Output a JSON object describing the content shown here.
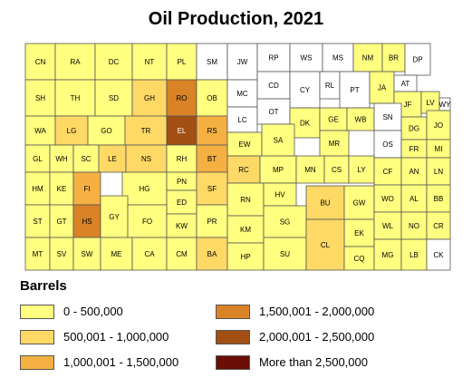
{
  "title": "Oil Production, 2021",
  "legend": {
    "title": "Barrels",
    "items": [
      {
        "label": "0 - 500,000",
        "color": "#ffff80"
      },
      {
        "label": "500,001 - 1,000,000",
        "color": "#ffd966"
      },
      {
        "label": "1,000,001 - 1,500,000",
        "color": "#f4b142"
      },
      {
        "label": "1,500,001 - 2,000,000",
        "color": "#d98326"
      },
      {
        "label": "2,000,001 - 2,500,000",
        "color": "#a24f13"
      },
      {
        "label": "More than 2,500,000",
        "color": "#6b0e05"
      }
    ]
  },
  "counties": [
    {
      "abbr": "CN",
      "class": 0
    },
    {
      "abbr": "RA",
      "class": 0
    },
    {
      "abbr": "DC",
      "class": 0
    },
    {
      "abbr": "NT",
      "class": 0
    },
    {
      "abbr": "PL",
      "class": 0
    },
    {
      "abbr": "SM",
      "class": -1
    },
    {
      "abbr": "JW",
      "class": -1
    },
    {
      "abbr": "RP",
      "class": -1
    },
    {
      "abbr": "WS",
      "class": -1
    },
    {
      "abbr": "MS",
      "class": -1
    },
    {
      "abbr": "NM",
      "class": 0
    },
    {
      "abbr": "BR",
      "class": 0
    },
    {
      "abbr": "DP",
      "class": -1
    },
    {
      "abbr": "SH",
      "class": 0
    },
    {
      "abbr": "TH",
      "class": 0
    },
    {
      "abbr": "SD",
      "class": 0
    },
    {
      "abbr": "GH",
      "class": 1
    },
    {
      "abbr": "RO",
      "class": 3
    },
    {
      "abbr": "OB",
      "class": 0
    },
    {
      "abbr": "MC",
      "class": -1
    },
    {
      "abbr": "CD",
      "class": -1
    },
    {
      "abbr": "CY",
      "class": -1
    },
    {
      "abbr": "RL",
      "class": -1
    },
    {
      "abbr": "PT",
      "class": -1
    },
    {
      "abbr": "JA",
      "class": 0
    },
    {
      "abbr": "AT",
      "class": -1
    },
    {
      "abbr": "JF",
      "class": 0
    },
    {
      "abbr": "LV",
      "class": 0
    },
    {
      "abbr": "WY",
      "class": -1
    },
    {
      "abbr": "WA",
      "class": 0
    },
    {
      "abbr": "LG",
      "class": 1
    },
    {
      "abbr": "GO",
      "class": 0
    },
    {
      "abbr": "TR",
      "class": 1
    },
    {
      "abbr": "EL",
      "class": 4
    },
    {
      "abbr": "RS",
      "class": 2
    },
    {
      "abbr": "LC",
      "class": -1
    },
    {
      "abbr": "OT",
      "class": -1
    },
    {
      "abbr": "DK",
      "class": 0
    },
    {
      "abbr": "GE",
      "class": 0
    },
    {
      "abbr": "WB",
      "class": 0
    },
    {
      "abbr": "SN",
      "class": -1
    },
    {
      "abbr": "DG",
      "class": 0
    },
    {
      "abbr": "JO",
      "class": 0
    },
    {
      "abbr": "EW",
      "class": 0
    },
    {
      "abbr": "SA",
      "class": 0
    },
    {
      "abbr": "MR",
      "class": 0
    },
    {
      "abbr": "OS",
      "class": -1
    },
    {
      "abbr": "FR",
      "class": 0
    },
    {
      "abbr": "MI",
      "class": 0
    },
    {
      "abbr": "GL",
      "class": 0
    },
    {
      "abbr": "WH",
      "class": 0
    },
    {
      "abbr": "SC",
      "class": 0
    },
    {
      "abbr": "LE",
      "class": 1
    },
    {
      "abbr": "NS",
      "class": 1
    },
    {
      "abbr": "RH",
      "class": 0
    },
    {
      "abbr": "BT",
      "class": 2
    },
    {
      "abbr": "RC",
      "class": 1
    },
    {
      "abbr": "MP",
      "class": 0
    },
    {
      "abbr": "MN",
      "class": 0
    },
    {
      "abbr": "CS",
      "class": 0
    },
    {
      "abbr": "LY",
      "class": 0
    },
    {
      "abbr": "CF",
      "class": 0
    },
    {
      "abbr": "AN",
      "class": 0
    },
    {
      "abbr": "LN",
      "class": 0
    },
    {
      "abbr": "HM",
      "class": 0
    },
    {
      "abbr": "KE",
      "class": 0
    },
    {
      "abbr": "FI",
      "class": 2
    },
    {
      "abbr": "HG",
      "class": 0
    },
    {
      "abbr": "PN",
      "class": 0
    },
    {
      "abbr": "SF",
      "class": 1
    },
    {
      "abbr": "RN",
      "class": 0
    },
    {
      "abbr": "HV",
      "class": 0
    },
    {
      "abbr": "BU",
      "class": 1
    },
    {
      "abbr": "GW",
      "class": 0
    },
    {
      "abbr": "WO",
      "class": 0
    },
    {
      "abbr": "AL",
      "class": 0
    },
    {
      "abbr": "BB",
      "class": 0
    },
    {
      "abbr": "ED",
      "class": 0
    },
    {
      "abbr": "ST",
      "class": 0
    },
    {
      "abbr": "GT",
      "class": 0
    },
    {
      "abbr": "HS",
      "class": 3
    },
    {
      "abbr": "GY",
      "class": 0
    },
    {
      "abbr": "FO",
      "class": 0
    },
    {
      "abbr": "KW",
      "class": 0
    },
    {
      "abbr": "PR",
      "class": 0
    },
    {
      "abbr": "KM",
      "class": 0
    },
    {
      "abbr": "SG",
      "class": 0
    },
    {
      "abbr": "EK",
      "class": 0
    },
    {
      "abbr": "WL",
      "class": 0
    },
    {
      "abbr": "NO",
      "class": 0
    },
    {
      "abbr": "CR",
      "class": 0
    },
    {
      "abbr": "MT",
      "class": 0
    },
    {
      "abbr": "SV",
      "class": 0
    },
    {
      "abbr": "SW",
      "class": 0
    },
    {
      "abbr": "ME",
      "class": 0
    },
    {
      "abbr": "CA",
      "class": 0
    },
    {
      "abbr": "CM",
      "class": 0
    },
    {
      "abbr": "BA",
      "class": 1
    },
    {
      "abbr": "HP",
      "class": 0
    },
    {
      "abbr": "SU",
      "class": 0
    },
    {
      "abbr": "CL",
      "class": 1
    },
    {
      "abbr": "CQ",
      "class": 0
    },
    {
      "abbr": "MG",
      "class": 0
    },
    {
      "abbr": "LB",
      "class": 0
    },
    {
      "abbr": "CK",
      "class": -1
    }
  ]
}
